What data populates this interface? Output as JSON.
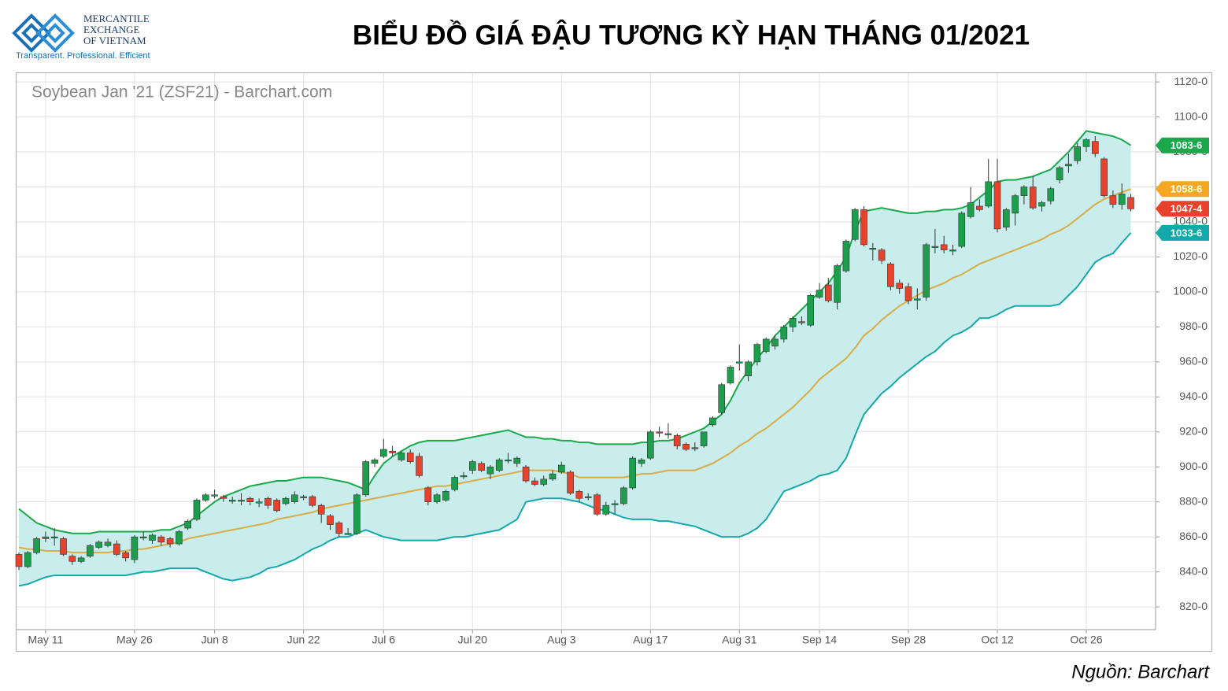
{
  "logo": {
    "lines": [
      "MERCANTILE",
      "EXCHANGE",
      "OF VIETNAM"
    ],
    "tagline": "Transparent. Professional. Efficient"
  },
  "chart_data": {
    "type": "candlestick",
    "title": "BIỂU ĐỒ GIÁ ĐẬU TƯƠNG KỲ HẠN THÁNG 01/2021",
    "subtitle": "Soybean Jan '21 (ZSF21) - Barchart.com",
    "source": "Nguồn: Barchart",
    "grid": true,
    "up_color": "#1d9e4c",
    "down_color": "#e8412c",
    "close_label": "1047-4",
    "ylim": [
      807,
      1125
    ],
    "yticks": [
      {
        "value": 820,
        "label": "820-0"
      },
      {
        "value": 840,
        "label": "840-0"
      },
      {
        "value": 860,
        "label": "860-0"
      },
      {
        "value": 880,
        "label": "880-0"
      },
      {
        "value": 900,
        "label": "900-0"
      },
      {
        "value": 920,
        "label": "920-0"
      },
      {
        "value": 940,
        "label": "940-0"
      },
      {
        "value": 960,
        "label": "960-0"
      },
      {
        "value": 980,
        "label": "980-0"
      },
      {
        "value": 1000,
        "label": "1000-0"
      },
      {
        "value": 1020,
        "label": "1020-0"
      },
      {
        "value": 1040,
        "label": "1040-0"
      },
      {
        "value": 1060,
        "label": "1060-0"
      },
      {
        "value": 1080,
        "label": "1080-0"
      },
      {
        "value": 1100,
        "label": "1100-0"
      },
      {
        "value": 1120,
        "label": "1120-0"
      }
    ],
    "categories": [
      null,
      null,
      null,
      "May 11",
      null,
      null,
      null,
      null,
      null,
      null,
      null,
      null,
      null,
      "May 26",
      null,
      null,
      null,
      null,
      null,
      null,
      null,
      null,
      "Jun 8",
      null,
      null,
      null,
      null,
      null,
      null,
      null,
      null,
      null,
      "Jun 22",
      null,
      null,
      null,
      null,
      null,
      null,
      null,
      null,
      "Jul 6",
      null,
      null,
      null,
      null,
      null,
      null,
      null,
      null,
      null,
      "Jul 20",
      null,
      null,
      null,
      null,
      null,
      null,
      null,
      null,
      null,
      "Aug 3",
      null,
      null,
      null,
      null,
      null,
      null,
      null,
      null,
      null,
      "Aug 17",
      null,
      null,
      null,
      null,
      null,
      null,
      null,
      null,
      null,
      "Aug 31",
      null,
      null,
      null,
      null,
      null,
      null,
      null,
      null,
      "Sep 14",
      null,
      null,
      null,
      null,
      null,
      null,
      null,
      null,
      null,
      "Sep 28",
      null,
      null,
      null,
      null,
      null,
      null,
      null,
      null,
      null,
      "Oct 12",
      null,
      null,
      null,
      null,
      null,
      null,
      null,
      null,
      null,
      "Oct 26",
      null,
      null,
      null,
      null,
      null
    ],
    "ohlc": [
      [
        850,
        851,
        841,
        843
      ],
      [
        843,
        852,
        842,
        851
      ],
      [
        851,
        860,
        850,
        859
      ],
      [
        859,
        863,
        857,
        860
      ],
      [
        860,
        865,
        855,
        860
      ],
      [
        859,
        860,
        849,
        850
      ],
      [
        849,
        850,
        844,
        846
      ],
      [
        846,
        849,
        845,
        848
      ],
      [
        849,
        856,
        848,
        855
      ],
      [
        854,
        858,
        853,
        857
      ],
      [
        855,
        859,
        854,
        857
      ],
      [
        856,
        858,
        849,
        850
      ],
      [
        851,
        852,
        846,
        848
      ],
      [
        847,
        861,
        845,
        860
      ],
      [
        860,
        863,
        858,
        860
      ],
      [
        858,
        862,
        856,
        861
      ],
      [
        860,
        861,
        855,
        857
      ],
      [
        859,
        860,
        854,
        856
      ],
      [
        856,
        864,
        855,
        863
      ],
      [
        865,
        870,
        864,
        869
      ],
      [
        870,
        882,
        869,
        881
      ],
      [
        881,
        885,
        880,
        884
      ],
      [
        884,
        887,
        882,
        884
      ],
      [
        883,
        884,
        880,
        882
      ],
      [
        881,
        883,
        879,
        881
      ],
      [
        881,
        885,
        878,
        881
      ],
      [
        882,
        883,
        878,
        880
      ],
      [
        880,
        882,
        877,
        880
      ],
      [
        882,
        883,
        876,
        878
      ],
      [
        881,
        882,
        874,
        875
      ],
      [
        879,
        883,
        878,
        882
      ],
      [
        880,
        886,
        879,
        884
      ],
      [
        883,
        884,
        881,
        883
      ],
      [
        883,
        884,
        877,
        878
      ],
      [
        878,
        879,
        868,
        873
      ],
      [
        872,
        873,
        864,
        867
      ],
      [
        868,
        869,
        860,
        862
      ],
      [
        862,
        865,
        861,
        862
      ],
      [
        862,
        885,
        861,
        884
      ],
      [
        884,
        904,
        883,
        903
      ],
      [
        902,
        905,
        900,
        904
      ],
      [
        906,
        916,
        905,
        910
      ],
      [
        909,
        912,
        906,
        908
      ],
      [
        904,
        909,
        903,
        908
      ],
      [
        908,
        910,
        902,
        903
      ],
      [
        906,
        908,
        894,
        895
      ],
      [
        888,
        889,
        878,
        880
      ],
      [
        880,
        885,
        879,
        884
      ],
      [
        881,
        887,
        880,
        886
      ],
      [
        887,
        895,
        886,
        894
      ],
      [
        895,
        897,
        893,
        895
      ],
      [
        898,
        904,
        896,
        903
      ],
      [
        902,
        903,
        897,
        898
      ],
      [
        896,
        901,
        893,
        900
      ],
      [
        898,
        905,
        897,
        904
      ],
      [
        904,
        908,
        902,
        904
      ],
      [
        902,
        906,
        900,
        905
      ],
      [
        900,
        901,
        891,
        892
      ],
      [
        892,
        894,
        889,
        890
      ],
      [
        890,
        895,
        889,
        893
      ],
      [
        893,
        898,
        892,
        896
      ],
      [
        897,
        903,
        896,
        901
      ],
      [
        897,
        898,
        884,
        885
      ],
      [
        886,
        887,
        880,
        882
      ],
      [
        883,
        885,
        881,
        883
      ],
      [
        884,
        885,
        872,
        873
      ],
      [
        873,
        880,
        872,
        878
      ],
      [
        879,
        881,
        873,
        879
      ],
      [
        879,
        889,
        878,
        888
      ],
      [
        888,
        906,
        887,
        905
      ],
      [
        902,
        905,
        900,
        904
      ],
      [
        905,
        921,
        904,
        920
      ],
      [
        920,
        923,
        917,
        920
      ],
      [
        919,
        925,
        916,
        919
      ],
      [
        918,
        919,
        910,
        912
      ],
      [
        913,
        914,
        909,
        910
      ],
      [
        911,
        914,
        909,
        911
      ],
      [
        912,
        920,
        911,
        920
      ],
      [
        924,
        929,
        923,
        928
      ],
      [
        931,
        948,
        930,
        947
      ],
      [
        948,
        958,
        947,
        957
      ],
      [
        960,
        970,
        955,
        960
      ],
      [
        952,
        961,
        949,
        960
      ],
      [
        960,
        971,
        958,
        970
      ],
      [
        966,
        974,
        965,
        973
      ],
      [
        969,
        975,
        967,
        973
      ],
      [
        973,
        981,
        971,
        980
      ],
      [
        980,
        986,
        977,
        985
      ],
      [
        983,
        986,
        981,
        983
      ],
      [
        981,
        999,
        980,
        998
      ],
      [
        997,
        1005,
        996,
        1001
      ],
      [
        1004,
        1008,
        994,
        995
      ],
      [
        994,
        1016,
        990,
        1015
      ],
      [
        1012,
        1030,
        1011,
        1029
      ],
      [
        1030,
        1048,
        1029,
        1047
      ],
      [
        1047,
        1049,
        1026,
        1027
      ],
      [
        1025,
        1028,
        1018,
        1025
      ],
      [
        1024,
        1025,
        1016,
        1018
      ],
      [
        1016,
        1017,
        1001,
        1003
      ],
      [
        1005,
        1007,
        999,
        1002
      ],
      [
        1003,
        1005,
        993,
        995
      ],
      [
        996,
        1002,
        990,
        996
      ],
      [
        997,
        1028,
        995,
        1027
      ],
      [
        1026,
        1036,
        1022,
        1026
      ],
      [
        1027,
        1032,
        1022,
        1024
      ],
      [
        1024,
        1027,
        1021,
        1024
      ],
      [
        1026,
        1046,
        1025,
        1045
      ],
      [
        1043,
        1060,
        1042,
        1051
      ],
      [
        1049,
        1053,
        1046,
        1047
      ],
      [
        1049,
        1076,
        1048,
        1063
      ],
      [
        1063,
        1076,
        1034,
        1036
      ],
      [
        1037,
        1048,
        1035,
        1047
      ],
      [
        1045,
        1056,
        1038,
        1055
      ],
      [
        1055,
        1061,
        1050,
        1060
      ],
      [
        1060,
        1066,
        1047,
        1048
      ],
      [
        1049,
        1052,
        1046,
        1051
      ],
      [
        1052,
        1060,
        1050,
        1059
      ],
      [
        1064,
        1072,
        1062,
        1071
      ],
      [
        1072,
        1079,
        1068,
        1073
      ],
      [
        1075,
        1085,
        1073,
        1083
      ],
      [
        1083,
        1088,
        1080,
        1087
      ],
      [
        1086,
        1089,
        1077,
        1079
      ],
      [
        1076,
        1077,
        1054,
        1055
      ],
      [
        1055,
        1058,
        1048,
        1050
      ],
      [
        1050,
        1062,
        1047,
        1056
      ],
      [
        1054,
        1056,
        1046,
        1047.5
      ]
    ],
    "band_fill": "#c9ecec",
    "bands": [
      {
        "color": "#1aa84a",
        "last_label": "1083-6",
        "values": [
          876,
          872,
          868,
          866,
          864,
          863,
          862,
          862,
          862,
          863,
          863,
          863,
          863,
          863,
          863,
          863,
          864,
          864,
          866,
          868,
          872,
          876,
          880,
          883,
          885,
          887,
          889,
          890,
          891,
          892,
          892,
          893,
          894,
          894,
          894,
          893,
          892,
          891,
          889,
          887,
          895,
          902,
          906,
          909,
          912,
          914,
          915,
          915,
          915,
          915,
          916,
          917,
          918,
          919,
          920,
          921,
          919,
          917,
          917,
          916,
          916,
          915,
          915,
          914,
          914,
          913,
          913,
          913,
          913,
          913,
          914,
          914,
          915,
          915,
          916,
          918,
          920,
          922,
          926,
          930,
          938,
          948,
          955,
          962,
          968,
          975,
          980,
          985,
          990,
          995,
          1000,
          1005,
          1012,
          1020,
          1035,
          1046,
          1047,
          1048,
          1047,
          1046,
          1045,
          1045,
          1046,
          1046,
          1047,
          1047,
          1048,
          1050,
          1054,
          1058,
          1063,
          1064,
          1064,
          1065,
          1066,
          1068,
          1070,
          1075,
          1080,
          1086,
          1092,
          1091,
          1090,
          1089,
          1087,
          1083.75
        ]
      },
      {
        "color": "#d8ad45",
        "last_label": "1058-6",
        "values": [
          854,
          853,
          853,
          852,
          852,
          852,
          851,
          851,
          851,
          851,
          851,
          852,
          852,
          853,
          853,
          854,
          855,
          856,
          857,
          859,
          860,
          861,
          862,
          863,
          864,
          865,
          866,
          867,
          868,
          870,
          871,
          872,
          873,
          874,
          876,
          877,
          878,
          879,
          880,
          881,
          882,
          883,
          884,
          885,
          886,
          887,
          888,
          889,
          889,
          890,
          891,
          892,
          893,
          894,
          895,
          896,
          897,
          898,
          898,
          898,
          898,
          897,
          896,
          894,
          894,
          894,
          894,
          894,
          894,
          895,
          896,
          896,
          897,
          898,
          898,
          898,
          898,
          900,
          902,
          905,
          908,
          912,
          915,
          919,
          922,
          926,
          930,
          934,
          939,
          944,
          950,
          954,
          958,
          962,
          968,
          975,
          979,
          984,
          988,
          992,
          995,
          998,
          1001,
          1003,
          1005,
          1008,
          1010,
          1013,
          1016,
          1018,
          1020,
          1022,
          1024,
          1026,
          1028,
          1030,
          1033,
          1035,
          1038,
          1042,
          1046,
          1050,
          1053,
          1055,
          1057,
          1058.75
        ]
      },
      {
        "color": "#13a8aa",
        "last_label": "1033-6",
        "values": [
          832,
          833,
          835,
          837,
          838,
          838,
          838,
          838,
          838,
          838,
          838,
          838,
          838,
          839,
          840,
          840,
          841,
          842,
          842,
          842,
          842,
          840,
          838,
          836,
          835,
          836,
          837,
          839,
          842,
          843,
          845,
          847,
          850,
          853,
          855,
          858,
          860,
          860,
          862,
          864,
          862,
          860,
          859,
          858,
          858,
          858,
          858,
          858,
          859,
          860,
          860,
          861,
          862,
          863,
          864,
          867,
          870,
          880,
          881,
          882,
          882,
          882,
          881,
          880,
          878,
          876,
          875,
          873,
          871,
          870,
          870,
          870,
          869,
          869,
          868,
          867,
          866,
          864,
          862,
          860,
          860,
          860,
          862,
          865,
          870,
          878,
          886,
          888,
          890,
          892,
          895,
          896,
          898,
          905,
          918,
          930,
          936,
          942,
          946,
          951,
          955,
          959,
          963,
          966,
          971,
          975,
          977,
          980,
          985,
          985,
          987,
          990,
          992,
          992,
          992,
          992,
          992,
          993,
          998,
          1003,
          1010,
          1017,
          1020,
          1022,
          1028,
          1033.75
        ]
      }
    ]
  }
}
